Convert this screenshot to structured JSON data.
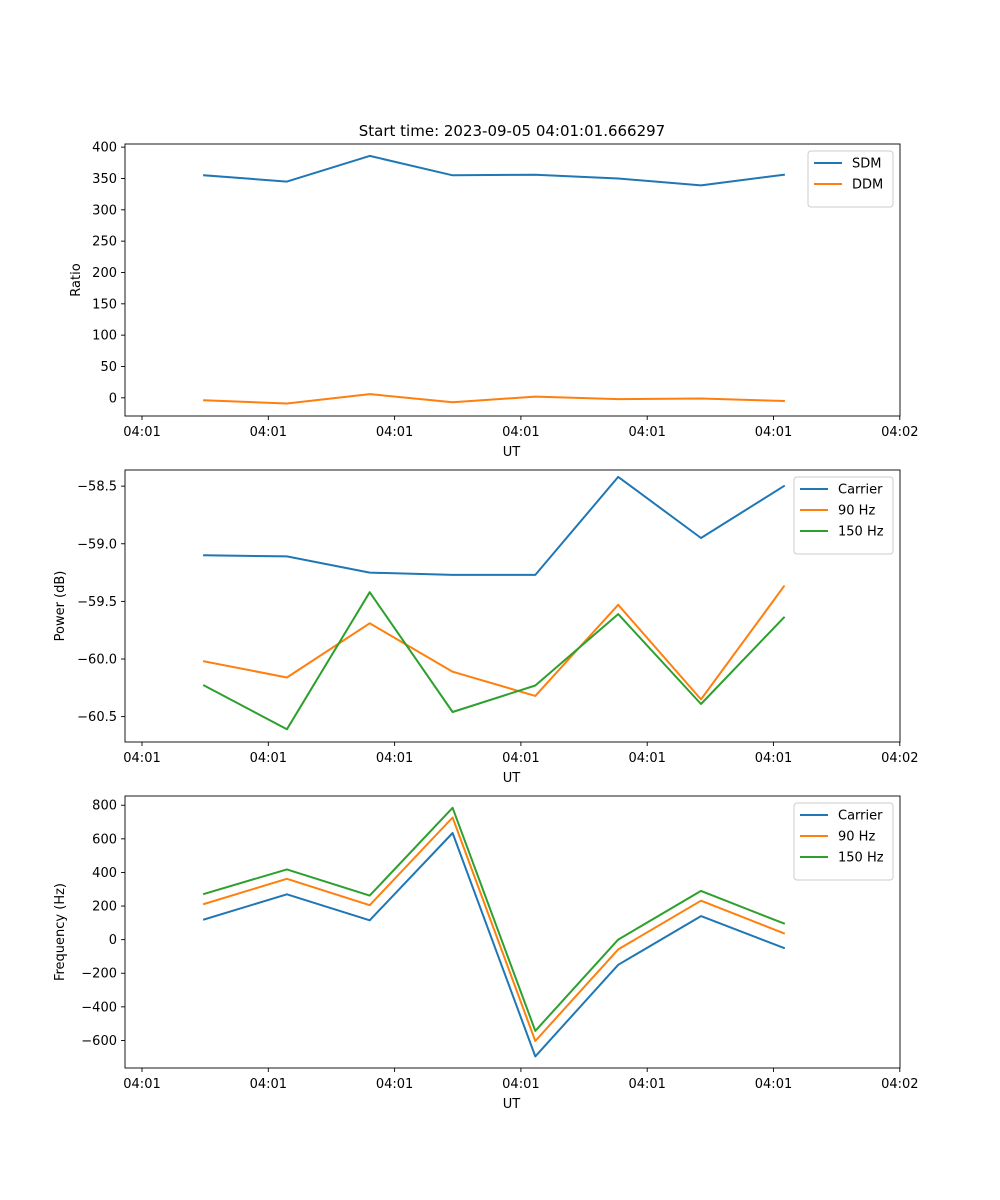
{
  "figure_title": "Start time: 2023-09-05 04:01:01.666297",
  "chart_data": [
    {
      "type": "line",
      "xlabel": "UT",
      "ylabel": "Ratio",
      "x_ticks": [
        "04:01",
        "04:01",
        "04:01",
        "04:01",
        "04:01",
        "04:01",
        "04:02"
      ],
      "y_ticks": [
        0,
        50,
        100,
        150,
        200,
        250,
        300,
        350,
        400
      ],
      "ylim": [
        -29,
        405
      ],
      "legend": "top-right",
      "series": [
        {
          "name": "SDM",
          "color": "#1f77b4",
          "values": [
            355,
            345,
            386,
            355,
            356,
            350,
            339,
            356
          ]
        },
        {
          "name": "DDM",
          "color": "#ff7f0e",
          "values": [
            -4,
            -9,
            6,
            -7,
            2,
            -2,
            -1,
            -5
          ]
        }
      ]
    },
    {
      "type": "line",
      "xlabel": "UT",
      "ylabel": "Power (dB)",
      "x_ticks": [
        "04:01",
        "04:01",
        "04:01",
        "04:01",
        "04:01",
        "04:01",
        "04:02"
      ],
      "y_ticks": [
        -60.5,
        -60.0,
        -59.5,
        -59.0,
        -58.5
      ],
      "y_tick_labels": [
        "−60.5",
        "−60.0",
        "−59.5",
        "−59.0",
        "−58.5"
      ],
      "ylim": [
        -60.72,
        -58.36
      ],
      "legend": "top-right",
      "series": [
        {
          "name": "Carrier",
          "color": "#1f77b4",
          "values": [
            -59.1,
            -59.11,
            -59.25,
            -59.27,
            -59.27,
            -58.42,
            -58.95,
            -58.5
          ]
        },
        {
          "name": "90 Hz",
          "color": "#ff7f0e",
          "values": [
            -60.02,
            -60.16,
            -59.69,
            -60.11,
            -60.32,
            -59.53,
            -60.35,
            -59.37
          ]
        },
        {
          "name": "150 Hz",
          "color": "#2ca02c",
          "values": [
            -60.23,
            -60.61,
            -59.42,
            -60.46,
            -60.23,
            -59.61,
            -60.39,
            -59.64
          ]
        }
      ]
    },
    {
      "type": "line",
      "xlabel": "UT",
      "ylabel": "Frequency (Hz)",
      "x_ticks": [
        "04:01",
        "04:01",
        "04:01",
        "04:01",
        "04:01",
        "04:01",
        "04:02"
      ],
      "y_ticks": [
        -600,
        -400,
        -200,
        0,
        200,
        400,
        600,
        800
      ],
      "y_tick_labels": [
        "−600",
        "−400",
        "−200",
        "0",
        "200",
        "400",
        "600",
        "800"
      ],
      "ylim": [
        -764,
        855
      ],
      "legend": "top-right",
      "series": [
        {
          "name": "Carrier",
          "color": "#1f77b4",
          "values": [
            120,
            270,
            115,
            635,
            -695,
            -150,
            140,
            -50
          ]
        },
        {
          "name": "90 Hz",
          "color": "#ff7f0e",
          "values": [
            212,
            362,
            205,
            727,
            -603,
            -58,
            232,
            38
          ]
        },
        {
          "name": "150 Hz",
          "color": "#2ca02c",
          "values": [
            272,
            418,
            262,
            785,
            -543,
            0,
            290,
            96
          ]
        }
      ]
    }
  ]
}
